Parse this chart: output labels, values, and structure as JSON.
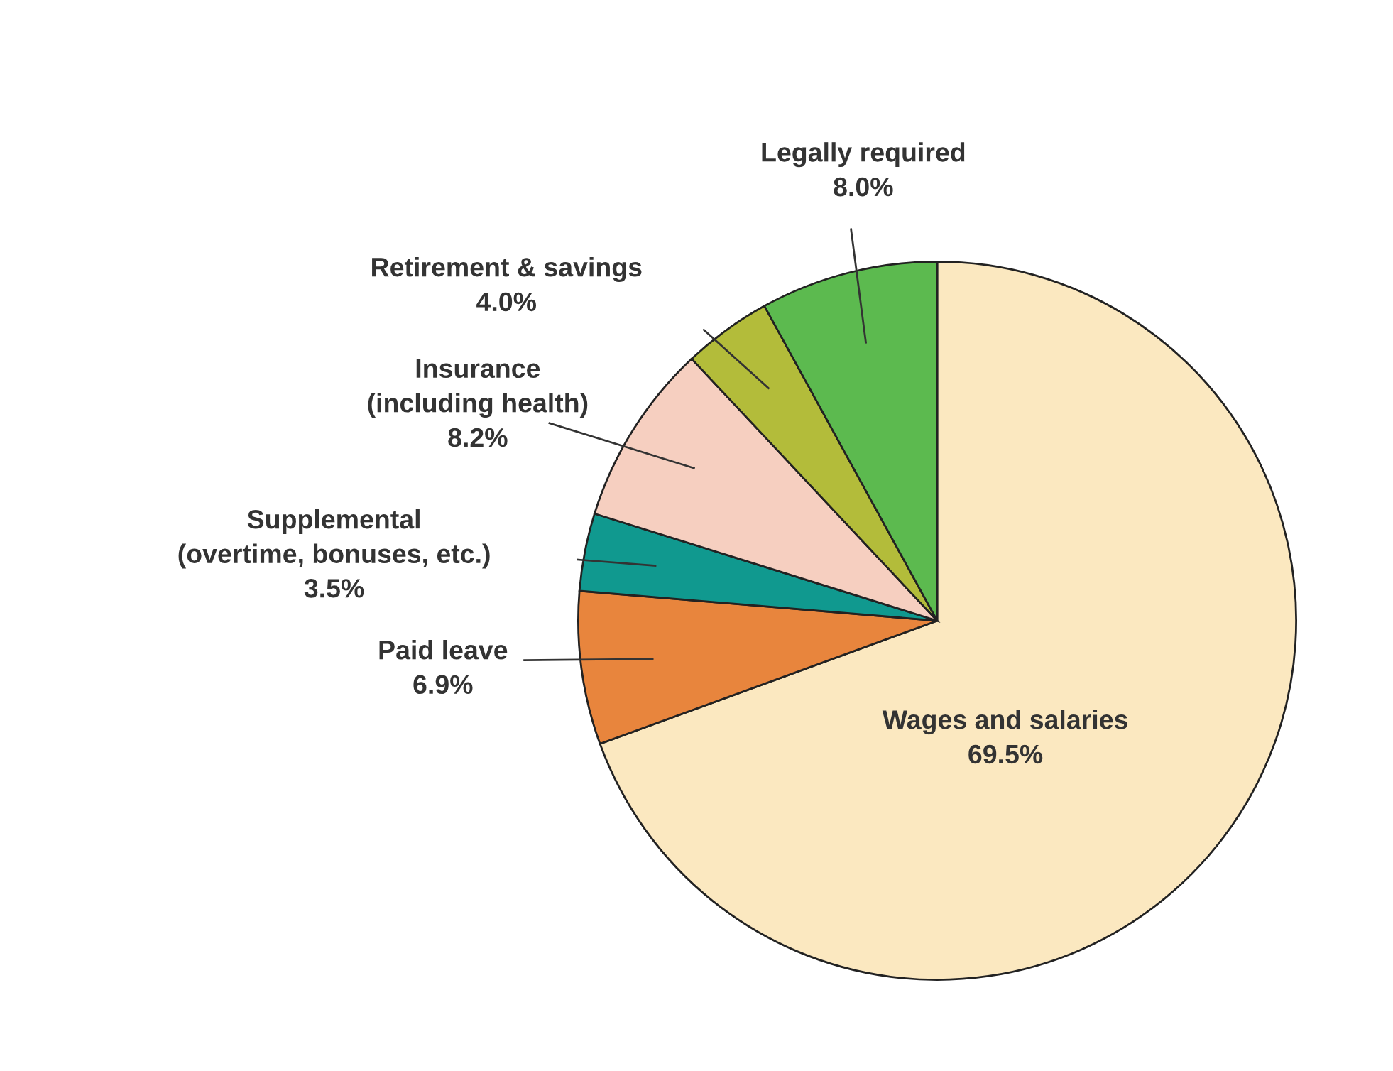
{
  "chart_data": {
    "type": "pie",
    "categories": [
      "Wages and salaries",
      "Paid leave",
      "Supplemental\n(overtime, bonuses, etc.)",
      "Insurance\n(including health)",
      "Retirement & savings",
      "Legally required"
    ],
    "values": [
      69.5,
      6.9,
      3.5,
      8.2,
      4.0,
      8.0
    ],
    "value_labels": [
      "69.5%",
      "6.9%",
      "3.5%",
      "8.2%",
      "4.0%",
      "8.0%"
    ],
    "colors": [
      "#fbe8c0",
      "#e8853d",
      "#10998f",
      "#f6cfc0",
      "#b3bc3a",
      "#5cba4f"
    ]
  }
}
